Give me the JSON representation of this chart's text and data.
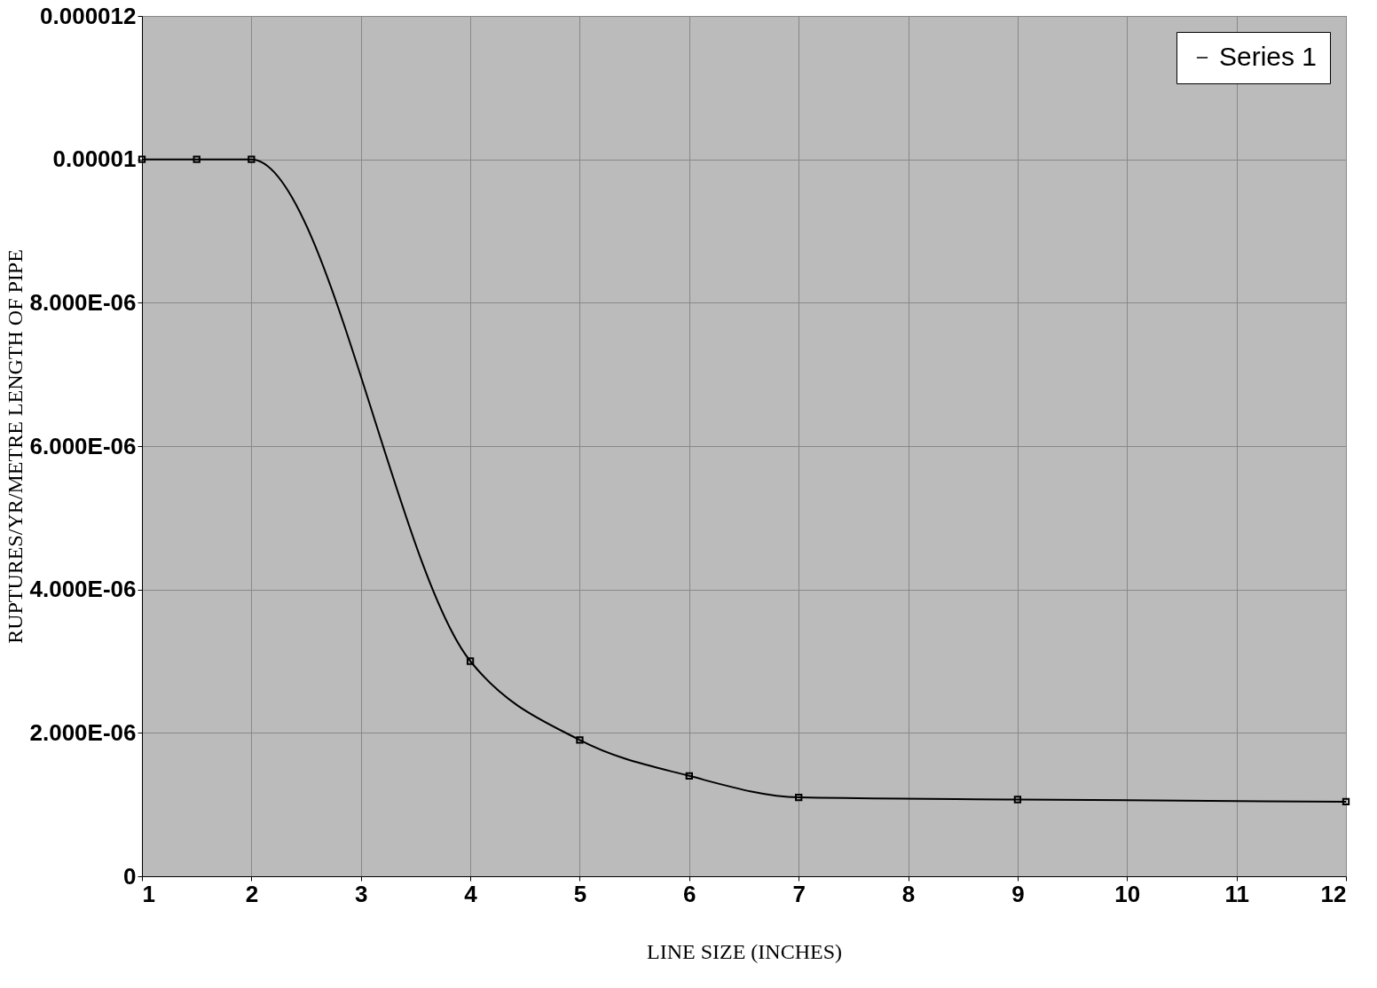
{
  "chart_data": {
    "type": "line",
    "xlabel": "LINE SIZE (INCHES)",
    "ylabel": "RUPTURES/YR/METRE LENGTH OF PIPE",
    "x": [
      1,
      1.5,
      2,
      4,
      5,
      6,
      7,
      9,
      12
    ],
    "series": [
      {
        "name": "Series 1",
        "color": "#000000",
        "values": [
          1e-05,
          1e-05,
          1e-05,
          3e-06,
          1.9e-06,
          1.4e-06,
          1.1e-06,
          1.07e-06,
          1.04e-06
        ]
      }
    ],
    "xlim": [
      1,
      12
    ],
    "xticks": [
      1,
      2,
      3,
      4,
      5,
      6,
      7,
      8,
      9,
      10,
      11,
      12
    ],
    "ylim": [
      0,
      1.2e-05
    ],
    "yticks": [
      {
        "value": 0,
        "label": "0"
      },
      {
        "value": 2e-06,
        "label": "2.000E-06"
      },
      {
        "value": 4e-06,
        "label": "4.000E-06"
      },
      {
        "value": 6e-06,
        "label": "6.000E-06"
      },
      {
        "value": 8e-06,
        "label": "8.000E-06"
      },
      {
        "value": 1e-05,
        "label": "0.00001"
      },
      {
        "value": 1.2e-05,
        "label": "0.000012"
      }
    ],
    "grid": true,
    "legend": "top right",
    "marker": "square",
    "line_style": "solid"
  }
}
